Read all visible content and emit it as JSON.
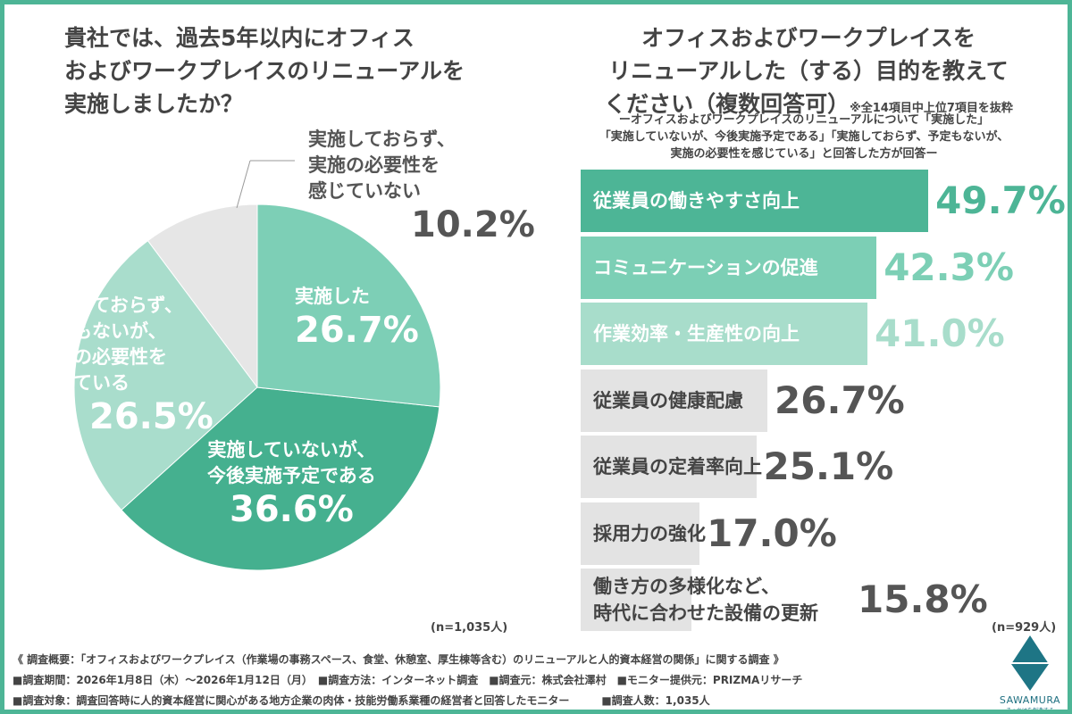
{
  "left_title": "貴社では、過去5年以内にオフィス\nおよびワークプレイスのリニューアルを\n実施しましたか？",
  "right_title": "オフィスおよびワークプレイスを\nリニューアルした（する）目的を教えて\nください（複数回答可）",
  "right_note": "※全14項目中上位7項目を抜粋",
  "right_subtitle": "ーオフィスおよびワークプレイスのリニューアルについて「実施した」\n「実施していないが、今後実施予定である」「実施しておらず、予定もないが、\n実施の必要性を感じている」と回答した方が回答ー",
  "chart_data": [
    {
      "type": "pie",
      "n_label": "(n=1,035人)",
      "slices": [
        {
          "label": "実施した",
          "value": 26.7,
          "value_label": "26.7%",
          "color": "#7dcfb6"
        },
        {
          "label": "実施していないが、\n今後実施予定である",
          "value": 36.6,
          "value_label": "36.6%",
          "color": "#45b08f"
        },
        {
          "label": "実施しておらず、\n予定もないが、\n実施の必要性を\n感じている",
          "value": 26.5,
          "value_label": "26.5%",
          "color": "#a9ddcc"
        },
        {
          "label": "実施しておらず、\n実施の必要性を\n感じていない",
          "value": 10.2,
          "value_label": "10.2%",
          "color": "#e6e6e6"
        }
      ]
    },
    {
      "type": "bar",
      "orientation": "horizontal",
      "n_label": "(n=929人)",
      "categories": [
        "従業員の働きやすさ向上",
        "コミュニケーションの促進",
        "作業効率・生産性の向上",
        "従業員の健康配慮",
        "従業員の定着率向上",
        "採用力の強化",
        "働き方の多様化など、\n時代に合わせた設備の更新"
      ],
      "values": [
        49.7,
        42.3,
        41.0,
        26.7,
        25.1,
        17.0,
        15.8
      ],
      "value_labels": [
        "49.7%",
        "42.3%",
        "41.0%",
        "26.7%",
        "25.1%",
        "17.0%",
        "15.8%"
      ],
      "colors": [
        "#4db596",
        "#7ccfb5",
        "#a8ddcb",
        "#e3e3e3",
        "#e3e3e3",
        "#e3e3e3",
        "#e3e3e3"
      ]
    }
  ],
  "footer": {
    "line1": "《 調査概要：「オフィスおよびワークプレイス（作業場の事務スペース、食堂、休憩室、厚生棟等含む）のリニューアルと人的資本経営の関係」に関する調査 》",
    "line2": "■調査期間：2026年1月8日（木）～2026年1月12日（月）　■調査方法：インターネット調査　■調査元：株式会社澤村　■モニター提供元：PRIZMAリサーチ",
    "line3": "■調査対象：調査回答時に人的資本経営に関心がある地方企業の肉体・技能労働系業種の経営者と回答したモニター　　　■調査人数：1,035人"
  },
  "logo": {
    "name": "SAWAMURA",
    "tagline": "きっかけを創造する",
    "color": "#1e7585"
  }
}
